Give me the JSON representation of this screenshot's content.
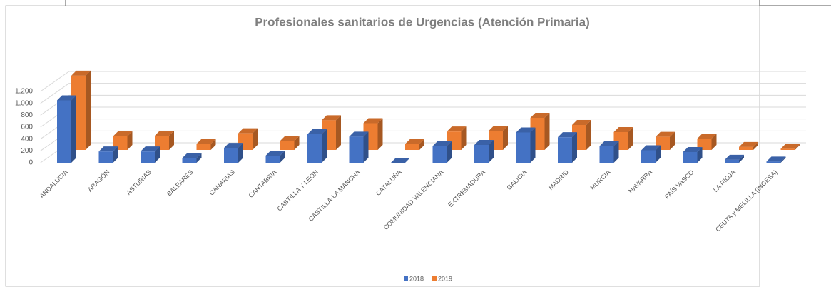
{
  "chart_data": {
    "type": "bar3d",
    "title": "Profesionales sanitarios de Urgencias (Atención Primaria)",
    "categories": [
      "ANDALUCÍA",
      "ARAGÓN",
      "ASTURIAS",
      "BALEARES",
      "CANARIAS",
      "CANTABRIA",
      "CASTILLA Y LEÓN",
      "CASTILLA-LA MANCHA",
      "CATALUÑA",
      "COMUNIDAD VALENCIANA",
      "EXTREMADURA",
      "GALICIA",
      "MADRID",
      "MURCIA",
      "NAVARRA",
      "PAÍS VASCO",
      "LA RIOJA",
      "CEUTA y MELILLA (INGESA)"
    ],
    "series": [
      {
        "name": "2018",
        "color": "#4472c4",
        "values": [
          1050,
          190,
          190,
          80,
          250,
          120,
          480,
          440,
          0,
          280,
          300,
          510,
          430,
          280,
          210,
          180,
          50,
          20
        ]
      },
      {
        "name": "2019",
        "color": "#ed7d31",
        "values": [
          1250,
          230,
          240,
          100,
          280,
          150,
          500,
          450,
          100,
          310,
          320,
          540,
          420,
          300,
          220,
          190,
          50,
          20
        ]
      }
    ],
    "ylim": [
      0,
      1200
    ],
    "yticks": [
      0,
      200,
      400,
      600,
      800,
      {
        "value": 1000,
        "label": "1,000"
      },
      {
        "value": 1200,
        "label": "1,200"
      }
    ],
    "grid": true,
    "legend": "bottom"
  }
}
